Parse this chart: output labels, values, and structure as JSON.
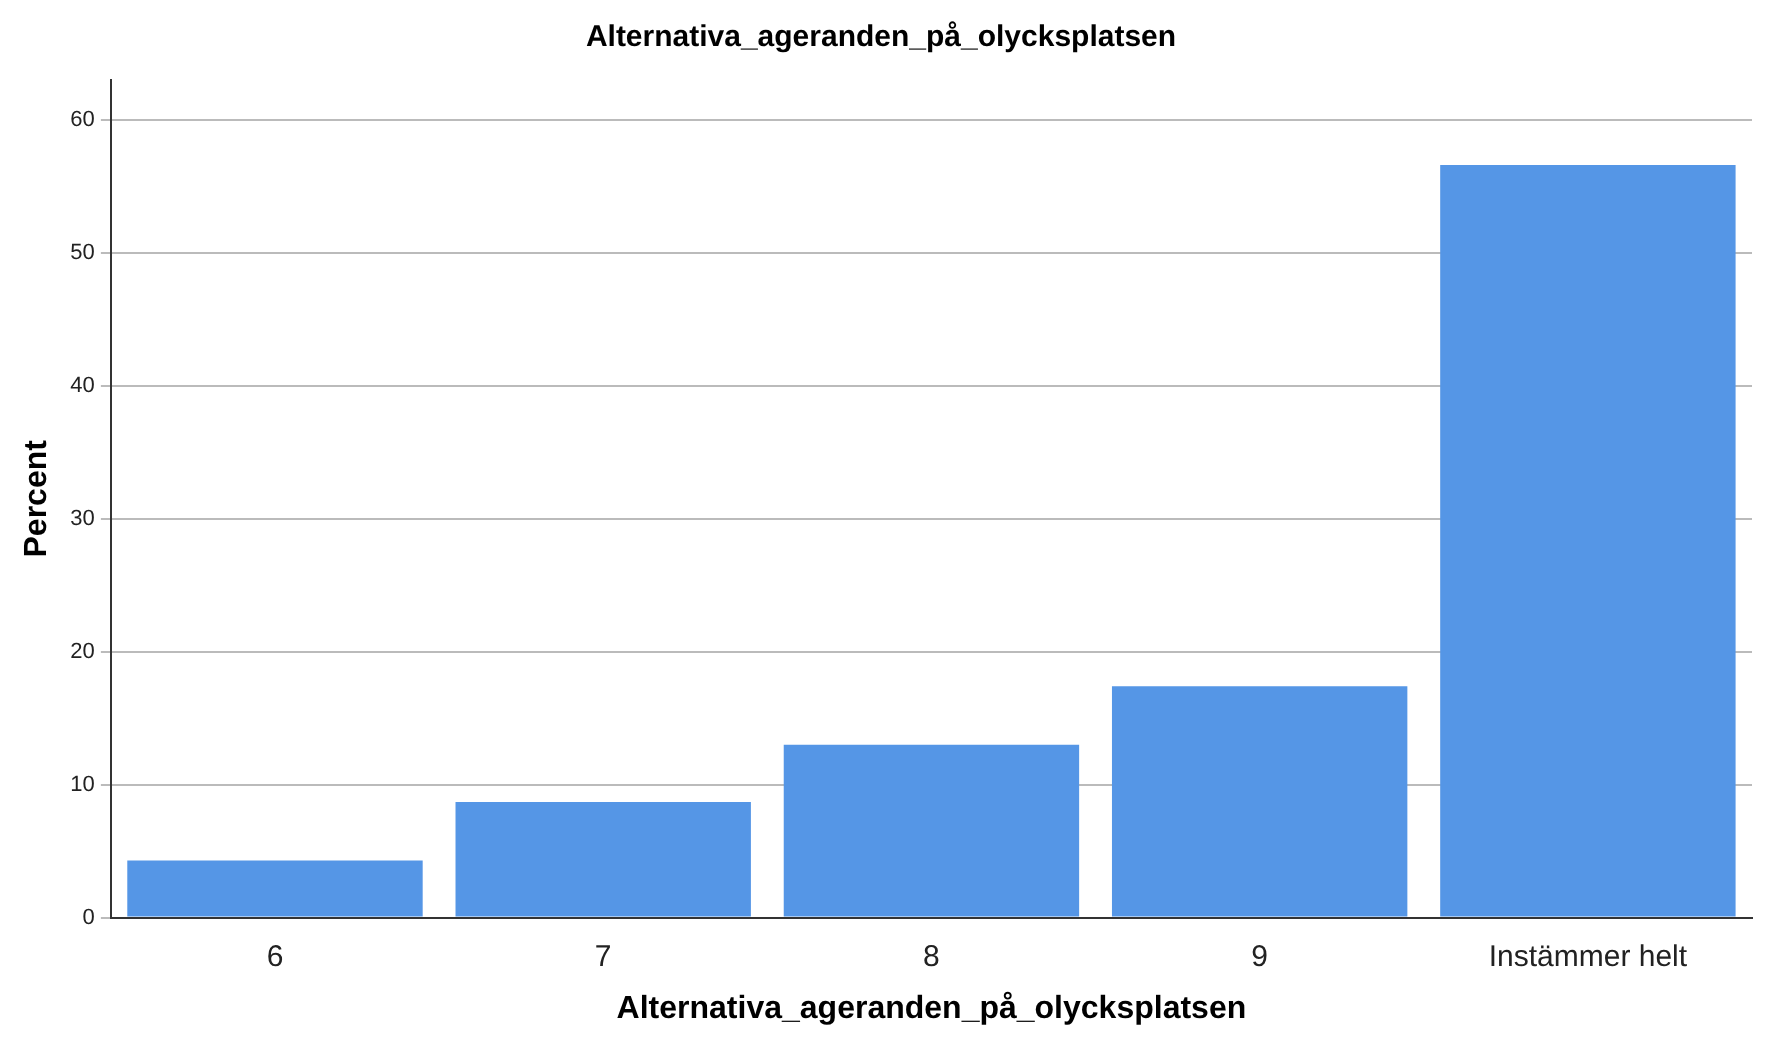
{
  "chart_data": {
    "type": "bar",
    "title": "Alternativa_ageranden_på_olycksplatsen",
    "xlabel": "Alternativa_ageranden_på_olycksplatsen",
    "ylabel": "Percent",
    "categories": [
      "6",
      "7",
      "8",
      "9",
      "Instämmer helt"
    ],
    "values": [
      4.3,
      8.7,
      13.0,
      17.4,
      56.6
    ],
    "color": "#5596e6",
    "ylim": [
      0,
      63
    ],
    "yticks": [
      0,
      10,
      20,
      30,
      40,
      50,
      60
    ],
    "grid": "y"
  }
}
